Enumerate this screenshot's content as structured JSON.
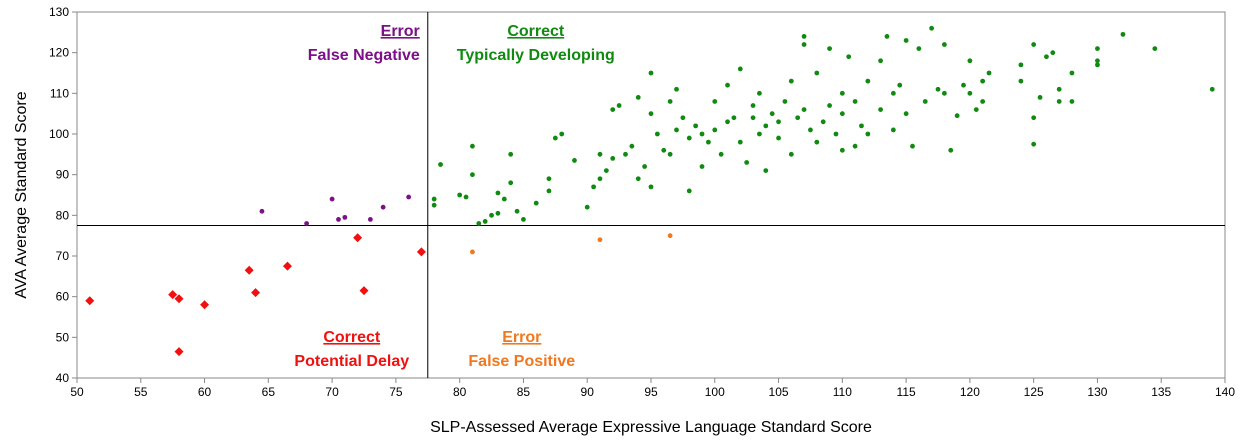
{
  "chart_data": {
    "type": "scatter",
    "x_label": "SLP-Assessed Average Expressive Language Standard Score",
    "y_label": "AVA Average Standard Score",
    "xlim": [
      50,
      140
    ],
    "ylim": [
      40,
      130
    ],
    "xticks": [
      50,
      55,
      60,
      65,
      70,
      75,
      80,
      85,
      90,
      95,
      100,
      105,
      110,
      115,
      120,
      125,
      130,
      135,
      140
    ],
    "yticks": [
      40,
      50,
      60,
      70,
      80,
      90,
      100,
      110,
      120,
      130
    ],
    "thresholds": {
      "x": 77.5,
      "y": 77.5
    },
    "series": [
      {
        "status": "Correct",
        "name": "Typically Developing",
        "color": "#108a10",
        "marker": "circle",
        "quadrant": "upper-right",
        "x": [
          78,
          78,
          78.5,
          80,
          80.5,
          81,
          81,
          81.5,
          82,
          82.5,
          83,
          83,
          83.5,
          84,
          84,
          84.5,
          85,
          86,
          87,
          87,
          87.5,
          88,
          89,
          90,
          90.5,
          91,
          91,
          91.5,
          92,
          92,
          92.5,
          93,
          93.5,
          94,
          94,
          94.5,
          95,
          95,
          95,
          95.5,
          96,
          96.5,
          96.5,
          97,
          97,
          97.5,
          98,
          98,
          98.5,
          99,
          99,
          99.5,
          100,
          100,
          100.5,
          101,
          101,
          101.5,
          102,
          102,
          102.5,
          103,
          103,
          103.5,
          103.5,
          104,
          104,
          104.5,
          105,
          105,
          105.5,
          106,
          106,
          106.5,
          107,
          107,
          107,
          107.5,
          108,
          108,
          108.5,
          109,
          109,
          109.5,
          110,
          110,
          110,
          110.5,
          111,
          111,
          111.5,
          112,
          112,
          113,
          113,
          113.5,
          114,
          114,
          114.5,
          115,
          115,
          115.5,
          116,
          116.5,
          117,
          117.5,
          118,
          118,
          118.5,
          119,
          119.5,
          120,
          120,
          120.5,
          121,
          121,
          121.5,
          124,
          124,
          125,
          125,
          125,
          125.5,
          126,
          126.5,
          127,
          127,
          128,
          128,
          130,
          130,
          130,
          132,
          134.5,
          139
        ],
        "y": [
          82.5,
          84,
          92.5,
          85,
          84.5,
          90,
          97,
          78,
          78.5,
          80,
          80.5,
          85.5,
          84,
          88,
          95,
          81,
          79,
          83,
          86,
          89,
          99,
          100,
          93.5,
          82,
          87,
          89,
          95,
          91,
          94,
          106,
          107,
          95,
          97,
          89,
          109,
          92,
          87,
          105,
          115,
          100,
          96,
          95,
          108,
          101,
          111,
          104,
          86,
          99,
          102,
          92,
          100,
          98,
          101,
          108,
          95,
          103,
          112,
          104,
          98,
          116,
          93,
          104,
          107,
          100,
          110,
          91,
          102,
          105,
          99,
          103,
          108,
          95,
          113,
          104,
          106,
          124,
          122,
          101,
          98,
          115,
          103,
          107,
          121,
          100,
          96,
          105,
          110,
          119,
          108,
          97,
          102,
          113,
          100,
          106,
          118,
          124,
          101,
          110,
          112,
          123,
          105,
          97,
          121,
          108,
          126,
          111,
          122,
          110,
          96,
          104.5,
          112,
          110,
          118,
          106,
          113,
          108,
          115,
          113,
          117,
          122,
          104,
          97.5,
          109,
          119,
          120,
          111,
          108,
          115,
          108,
          118,
          121,
          117,
          124.5,
          121,
          111
        ]
      },
      {
        "status": "Error",
        "name": "False Negative",
        "color": "#7d0f8a",
        "marker": "circle",
        "quadrant": "upper-left",
        "x": [
          64.5,
          68,
          70,
          70.5,
          71,
          73,
          74,
          76
        ],
        "y": [
          81,
          78,
          84,
          79,
          79.5,
          79,
          82,
          84.5
        ]
      },
      {
        "status": "Correct",
        "name": "Potential Delay",
        "color": "#f01010",
        "marker": "diamond",
        "quadrant": "lower-left",
        "x": [
          51,
          57.5,
          58,
          58,
          60,
          63.5,
          64,
          66.5,
          72,
          72.5,
          77
        ],
        "y": [
          59,
          60.5,
          59.5,
          46.5,
          58,
          66.5,
          61,
          67.5,
          74.5,
          61.5,
          71
        ]
      },
      {
        "status": "Error",
        "name": "False Positive",
        "color": "#f07820",
        "marker": "circle",
        "quadrant": "lower-right",
        "x": [
          81,
          91,
          96.5
        ],
        "y": [
          71,
          74,
          75
        ]
      }
    ]
  }
}
